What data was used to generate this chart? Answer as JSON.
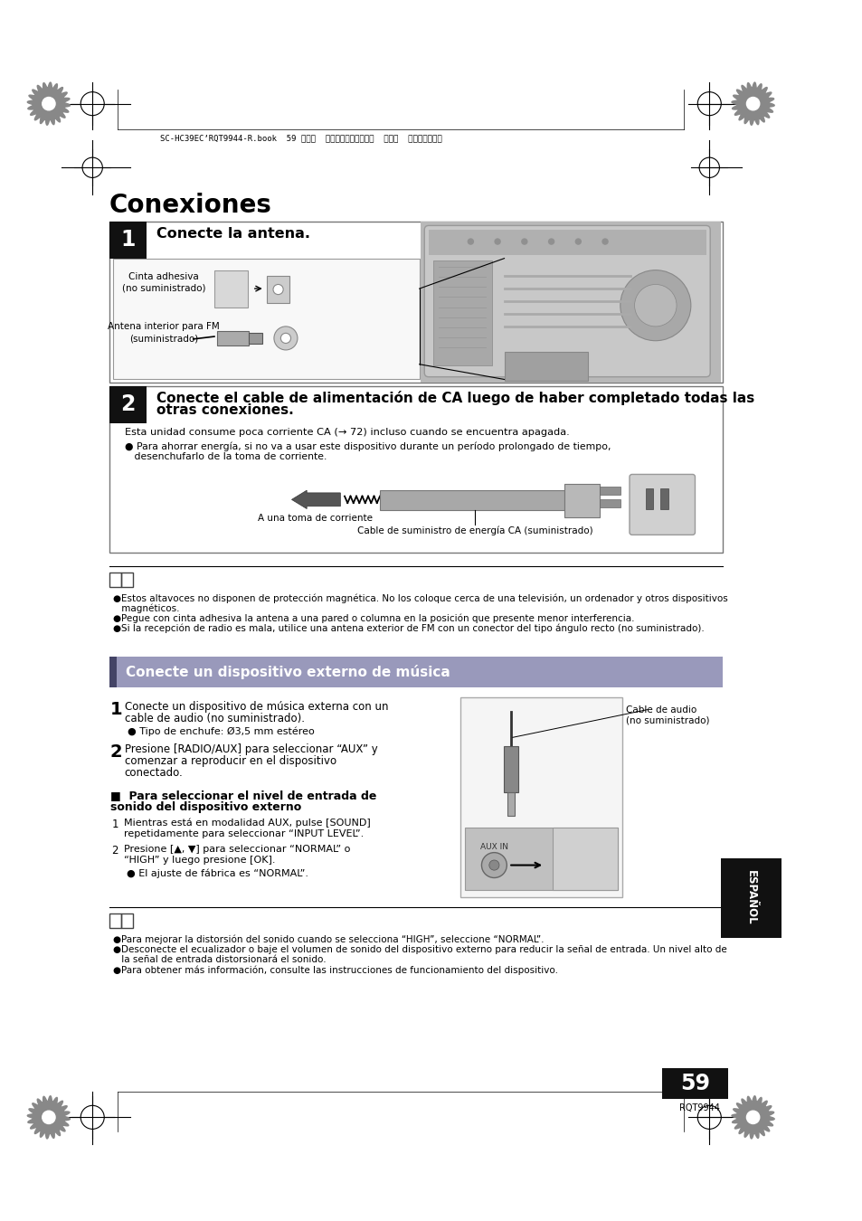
{
  "page_bg": "#ffffff",
  "title": "Conexiones",
  "title_fontsize": 20,
  "title_bold": true,
  "header_text": "SC-HC39ECʼRQT9944-R.book  59 ページ  ２０１４年１月１７日  金曜日  午後３時５８分",
  "section1_title": "Conecte la antena.",
  "section1_text1": "Cinta adhesiva\n(no suministrado)",
  "section1_text2": "Antena interior para FM\n(suministrado)",
  "section2_title_line1": "Conecte el cable de alimentación de CA luego de haber completado todas las",
  "section2_title_line2": "otras conexiones.",
  "section2_text1": "Esta unidad consume poca corriente CA (→ 72) incluso cuando se encuentra apagada.",
  "section2_bullet1_line1": "● Para ahorrar energía, si no va a usar este dispositivo durante un período prolongado de tiempo,",
  "section2_bullet1_line2": "   desenchufarlo de la toma de corriente.",
  "section2_label_corriente": "A una toma de corriente",
  "section2_label_cable": "Cable de suministro de energía CA (suministrado)",
  "note_bullets": [
    "●Estos altavoces no disponen de protección magnética. No los coloque cerca de una televisión, un ordenador y otros dispositivos",
    " magnéticos.",
    "●Pegue con cinta adhesiva la antena a una pared o columna en la posición que presente menor interferencia.",
    "●Si la recepción de radio es mala, utilice una antena exterior de FM con un conector del tipo ángulo recto (no suministrado)."
  ],
  "section3_title": "Conecte un dispositivo externo de música",
  "step1_text_line1": "Conecte un dispositivo de música externa con un",
  "step1_text_line2": "cable de audio (no suministrado).",
  "step1_bullet": "● Tipo de enchufe: Ø3,5 mm estéreo",
  "step2_text_line1": "Presione [RADIO/AUX] para seleccionar “AUX” y",
  "step2_text_line2": "comenzar a reproducir en el dispositivo",
  "step2_text_line3": "conectado.",
  "step_input_title_line1": "■  Para seleccionar el nivel de entrada de",
  "step_input_title_line2": "sonido del dispositivo externo",
  "input_step1_line1": "Mientras está en modalidad AUX, pulse [SOUND]",
  "input_step1_line2": "repetidamente para seleccionar “INPUT LEVEL”.",
  "input_step2_line1": "Presione [▲, ▼] para seleccionar “NORMAL” o",
  "input_step2_line2": "“HIGH” y luego presione [OK].",
  "input_step3": "● El ajuste de fábrica es “NORMAL”.",
  "note2_bullets": [
    "●Para mejorar la distorsión del sonido cuando se selecciona “HIGH”, seleccione “NORMAL”.",
    "●Desconecte el ecualizador o baje el volumen de sonido del dispositivo externo para reducir la señal de entrada. Un nivel alto de",
    " la señal de entrada distorsionará el sonido.",
    "●Para obtener más información, consulte las instrucciones de funcionamiento del dispositivo."
  ],
  "page_number": "59",
  "rqt_code": "RQT9944",
  "espanol_label": "ESPAÑOL",
  "label_cable_audio_line1": "Cable de audio",
  "label_cable_audio_line2": "(no suministrado)"
}
